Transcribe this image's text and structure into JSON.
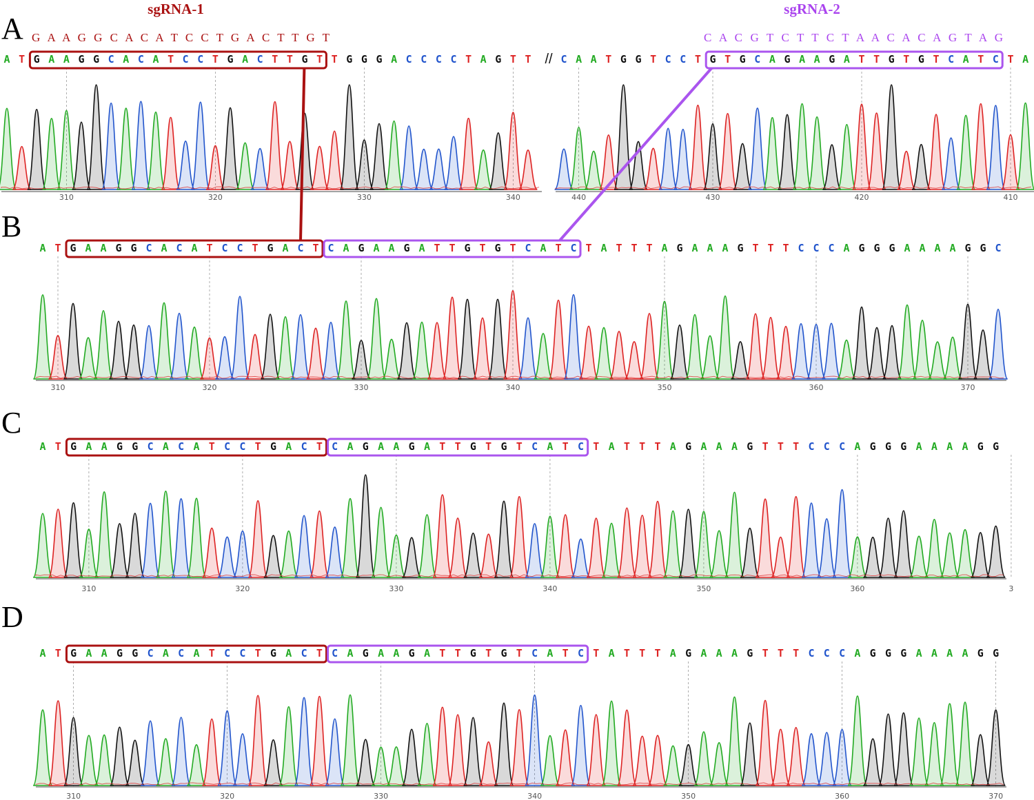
{
  "colors": {
    "A": "#22aa22",
    "C": "#2255cc",
    "G": "#111111",
    "T": "#dd2222",
    "sg1": "#aa1111",
    "sg2": "#aa44ee",
    "sg1_box": "#aa1111",
    "sg2_box": "#aa55ee"
  },
  "sgrna1": {
    "title": "sgRNA-1",
    "seq": "G A A G G C A C A T C C T G A C T T G T"
  },
  "sgrna2": {
    "title": "sgRNA-2",
    "seq": "C A C G T C T T C T A A C A C A G T A G"
  },
  "panels": [
    {
      "letter": "A",
      "segments": [
        {
          "seq": "ATGAAGGCACATCCTGACTTGTTGGGACCCCTAGTT",
          "ticks": [
            {
              "label": "310",
              "at": 4
            },
            {
              "label": "320",
              "at": 14
            },
            {
              "label": "330",
              "at": 24
            },
            {
              "label": "340",
              "at": 34
            }
          ],
          "box1": [
            2,
            21
          ]
        },
        {
          "seq": "CAATGGTCCTGTGCAGAAGATTGTGTCATCTA",
          "ticks": [
            {
              "label": "440",
              "at": 1
            },
            {
              "label": "430",
              "at": 10
            },
            {
              "label": "420",
              "at": 20
            },
            {
              "label": "410",
              "at": 30
            }
          ],
          "box2": [
            10,
            29
          ]
        }
      ],
      "separator": "//"
    },
    {
      "letter": "B",
      "seq": "ATGAAGGCACATCCTGACTCAGAAGATTGTGTCATCTATTTAGAAAGTTTCCCAGGGAAAAGGC",
      "ticks": [
        {
          "label": "310",
          "at": 1
        },
        {
          "label": "320",
          "at": 11
        },
        {
          "label": "330",
          "at": 21
        },
        {
          "label": "340",
          "at": 31
        },
        {
          "label": "350",
          "at": 41
        },
        {
          "label": "360",
          "at": 51
        },
        {
          "label": "370",
          "at": 61
        }
      ],
      "box1": [
        2,
        18
      ],
      "box2": [
        19,
        35
      ]
    },
    {
      "letter": "C",
      "seq": "ATGAAGGCACATCCTGACTCAGAAGATTGTGTCATCTATTTAGAAAGTTTCCCAGGGAAAAGG",
      "ticks": [
        {
          "label": "310",
          "at": 3
        },
        {
          "label": "320",
          "at": 13
        },
        {
          "label": "330",
          "at": 23
        },
        {
          "label": "340",
          "at": 33
        },
        {
          "label": "350",
          "at": 43
        },
        {
          "label": "360",
          "at": 53
        },
        {
          "label": "3",
          "at": 63
        }
      ],
      "box1": [
        2,
        18
      ],
      "box2": [
        19,
        35
      ]
    },
    {
      "letter": "D",
      "seq": "ATGAAGGCACATCCTGACTCAGAAGATTGTGTCATCTATTTAGAAAGTTTCCCAGGGAAAAGG",
      "ticks": [
        {
          "label": "310",
          "at": 2
        },
        {
          "label": "320",
          "at": 12
        },
        {
          "label": "330",
          "at": 22
        },
        {
          "label": "340",
          "at": 32
        },
        {
          "label": "350",
          "at": 42
        },
        {
          "label": "360",
          "at": 52
        },
        {
          "label": "370",
          "at": 62
        }
      ],
      "box1": [
        2,
        18
      ],
      "box2": [
        19,
        35
      ]
    }
  ]
}
